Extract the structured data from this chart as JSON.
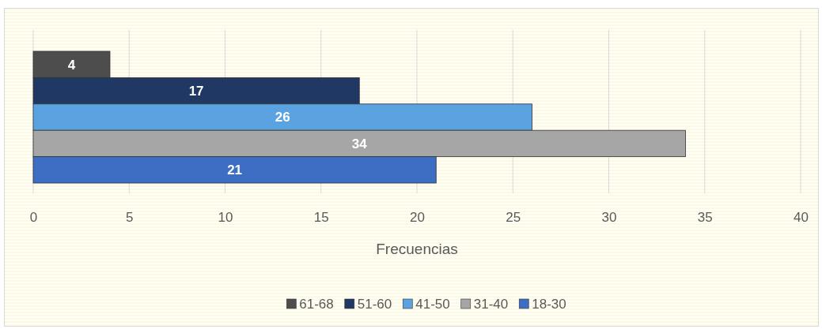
{
  "chart_data": {
    "type": "bar",
    "orientation": "horizontal",
    "categories": [
      null
    ],
    "xlabel": "Frecuencias",
    "xlim": [
      0,
      40
    ],
    "xticks": [
      0,
      5,
      10,
      15,
      20,
      25,
      30,
      35,
      40
    ],
    "grid": "x",
    "legend": "bottom",
    "data_labels": true,
    "series": [
      {
        "name": "61-68",
        "color": "#4d4d4d",
        "values": [
          4
        ]
      },
      {
        "name": "51-60",
        "color": "#1f3864",
        "values": [
          17
        ]
      },
      {
        "name": "41-50",
        "color": "#5ba3e0",
        "values": [
          26
        ]
      },
      {
        "name": "31-40",
        "color": "#a6a6a6",
        "values": [
          34
        ]
      },
      {
        "name": "18-30",
        "color": "#3c6fc4",
        "values": [
          21
        ]
      }
    ]
  }
}
